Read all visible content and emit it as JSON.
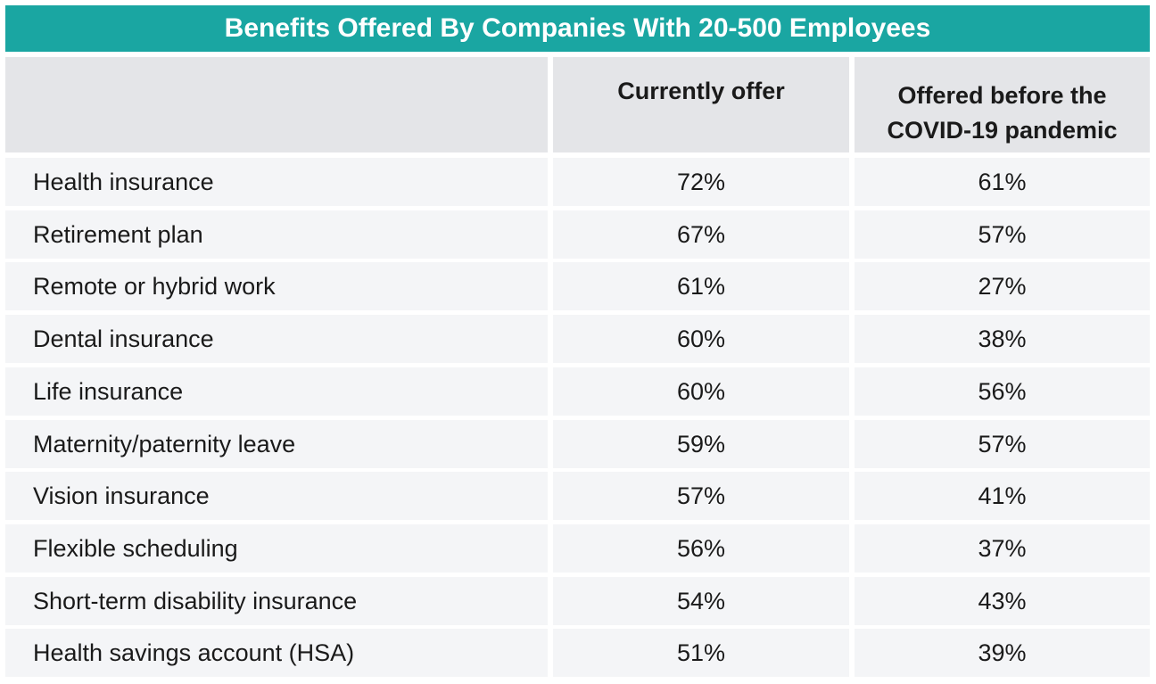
{
  "chart_data": {
    "type": "table",
    "title": "Benefits Offered By Companies With 20-500 Employees",
    "columns": [
      "",
      "Currently offer",
      "Offered before the COVID-19 pandemic"
    ],
    "header_lines": {
      "col2_line1": "Offered before the",
      "col2_line2": "COVID-19 pandemic"
    },
    "rows": [
      {
        "label": "Health insurance",
        "current": "72%",
        "before": "61%"
      },
      {
        "label": "Retirement plan",
        "current": "67%",
        "before": "57%"
      },
      {
        "label": "Remote or hybrid work",
        "current": "61%",
        "before": "27%"
      },
      {
        "label": "Dental insurance",
        "current": "60%",
        "before": "38%"
      },
      {
        "label": "Life insurance",
        "current": "60%",
        "before": "56%"
      },
      {
        "label": "Maternity/paternity leave",
        "current": "59%",
        "before": "57%"
      },
      {
        "label": "Vision insurance",
        "current": "57%",
        "before": "41%"
      },
      {
        "label": "Flexible scheduling",
        "current": "56%",
        "before": "37%"
      },
      {
        "label": "Short-term disability insurance",
        "current": "54%",
        "before": "43%"
      },
      {
        "label": "Health savings account (HSA)",
        "current": "51%",
        "before": "39%"
      }
    ]
  },
  "colors": {
    "title_bg": "#1aa6a2",
    "header_bg": "#e4e5e8",
    "row_bg": "#f4f5f7",
    "title_text": "#ffffff"
  }
}
